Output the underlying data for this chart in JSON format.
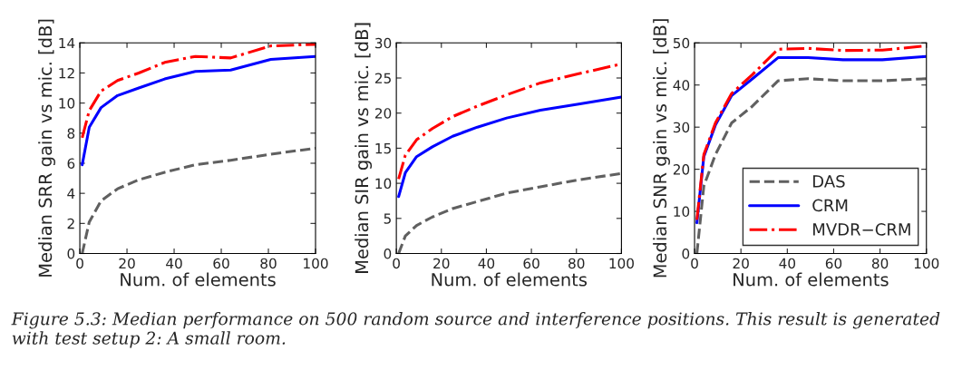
{
  "chart_data": [
    {
      "type": "line",
      "xlabel": "Num. of elements",
      "ylabel": "Median SRR gain vs mic. [dB]",
      "x": [
        1,
        4,
        9,
        16,
        25,
        36,
        49,
        64,
        81,
        100
      ],
      "xlim": [
        0,
        100
      ],
      "xticks": [
        0,
        20,
        40,
        60,
        80,
        100
      ],
      "ylim": [
        0,
        14
      ],
      "yticks": [
        0,
        2,
        4,
        6,
        8,
        10,
        12,
        14
      ],
      "grid": false,
      "legend": false,
      "series": [
        {
          "color": "#606060",
          "line_style": "dashed",
          "values": [
            0,
            2.1,
            3.5,
            4.3,
            4.9,
            5.4,
            5.9,
            6.2,
            6.6,
            7.0
          ]
        },
        {
          "color": "#0000ff",
          "line_style": "solid",
          "values": [
            5.9,
            8.4,
            9.7,
            10.5,
            11.0,
            11.6,
            12.1,
            12.2,
            12.9,
            13.1
          ]
        },
        {
          "color": "#ff0000",
          "line_style": "dashdot",
          "values": [
            7.7,
            9.5,
            10.8,
            11.5,
            12.0,
            12.7,
            13.1,
            13.0,
            13.8,
            13.9
          ]
        }
      ],
      "annotations": [
        "Figure 5.3: Median performance on 500 random source and interference positions. This result is generated with test setup 2: A small room."
      ]
    },
    {
      "type": "line",
      "xlabel": "Num. of elements",
      "ylabel": "Median SIR gain vs mic. [dB]",
      "x": [
        1,
        4,
        9,
        16,
        25,
        36,
        49,
        64,
        81,
        100
      ],
      "xlim": [
        0,
        100
      ],
      "xticks": [
        0,
        20,
        40,
        60,
        80,
        100
      ],
      "ylim": [
        0,
        30
      ],
      "yticks": [
        0,
        5,
        10,
        15,
        20,
        25,
        30
      ],
      "grid": false,
      "legend": false,
      "series": [
        {
          "color": "#606060",
          "line_style": "dashed",
          "values": [
            0,
            2.5,
            4.0,
            5.2,
            6.4,
            7.4,
            8.6,
            9.5,
            10.5,
            11.4
          ]
        },
        {
          "color": "#0000ff",
          "line_style": "solid",
          "values": [
            8.1,
            11.5,
            13.8,
            15.2,
            16.7,
            18.0,
            19.3,
            20.4,
            21.3,
            22.3
          ]
        },
        {
          "color": "#ff0000",
          "line_style": "dashdot",
          "values": [
            10.6,
            14.0,
            16.2,
            17.8,
            19.5,
            21.0,
            22.6,
            24.3,
            25.6,
            27.0
          ]
        }
      ]
    },
    {
      "type": "line",
      "xlabel": "Num. of elements",
      "ylabel": "Median SNR gain vs mic. [dB]",
      "x": [
        1,
        4,
        9,
        16,
        25,
        36,
        49,
        64,
        81,
        100
      ],
      "xlim": [
        0,
        100
      ],
      "xticks": [
        0,
        20,
        40,
        60,
        80,
        100
      ],
      "ylim": [
        0,
        50
      ],
      "yticks": [
        0,
        10,
        20,
        30,
        40,
        50
      ],
      "grid": false,
      "legend": "bottom right",
      "series": [
        {
          "name": "DAS",
          "color": "#606060",
          "line_style": "dashed",
          "values": [
            0,
            16,
            23.5,
            31,
            35,
            41,
            41.5,
            41,
            41,
            41.5
          ]
        },
        {
          "name": "CRM",
          "color": "#0000ff",
          "line_style": "solid",
          "values": [
            7.3,
            23,
            30.5,
            37.5,
            41.5,
            46.5,
            46.5,
            46,
            46,
            46.8
          ]
        },
        {
          "name": "MVDR−CRM",
          "color": "#ff0000",
          "line_style": "dashdot",
          "values": [
            8,
            23.5,
            31,
            38,
            42.5,
            48.5,
            48.7,
            48.2,
            48.3,
            49.3
          ]
        }
      ]
    }
  ]
}
